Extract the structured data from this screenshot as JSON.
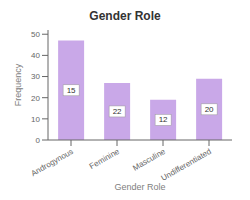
{
  "chart_data": {
    "type": "bar",
    "title": "Gender Role",
    "xlabel": "Gender Role",
    "ylabel": "Frequency",
    "categories": [
      "Androgynous",
      "Feminine",
      "Masculine",
      "Undifferentiated"
    ],
    "values": [
      47,
      27,
      19,
      29
    ],
    "annotations": [
      "15",
      "22",
      "12",
      "20"
    ],
    "color": "#c9a8e8",
    "ylim": [
      0,
      52
    ],
    "yticks": [
      0,
      10,
      20,
      30,
      40,
      50
    ],
    "grid": false
  }
}
